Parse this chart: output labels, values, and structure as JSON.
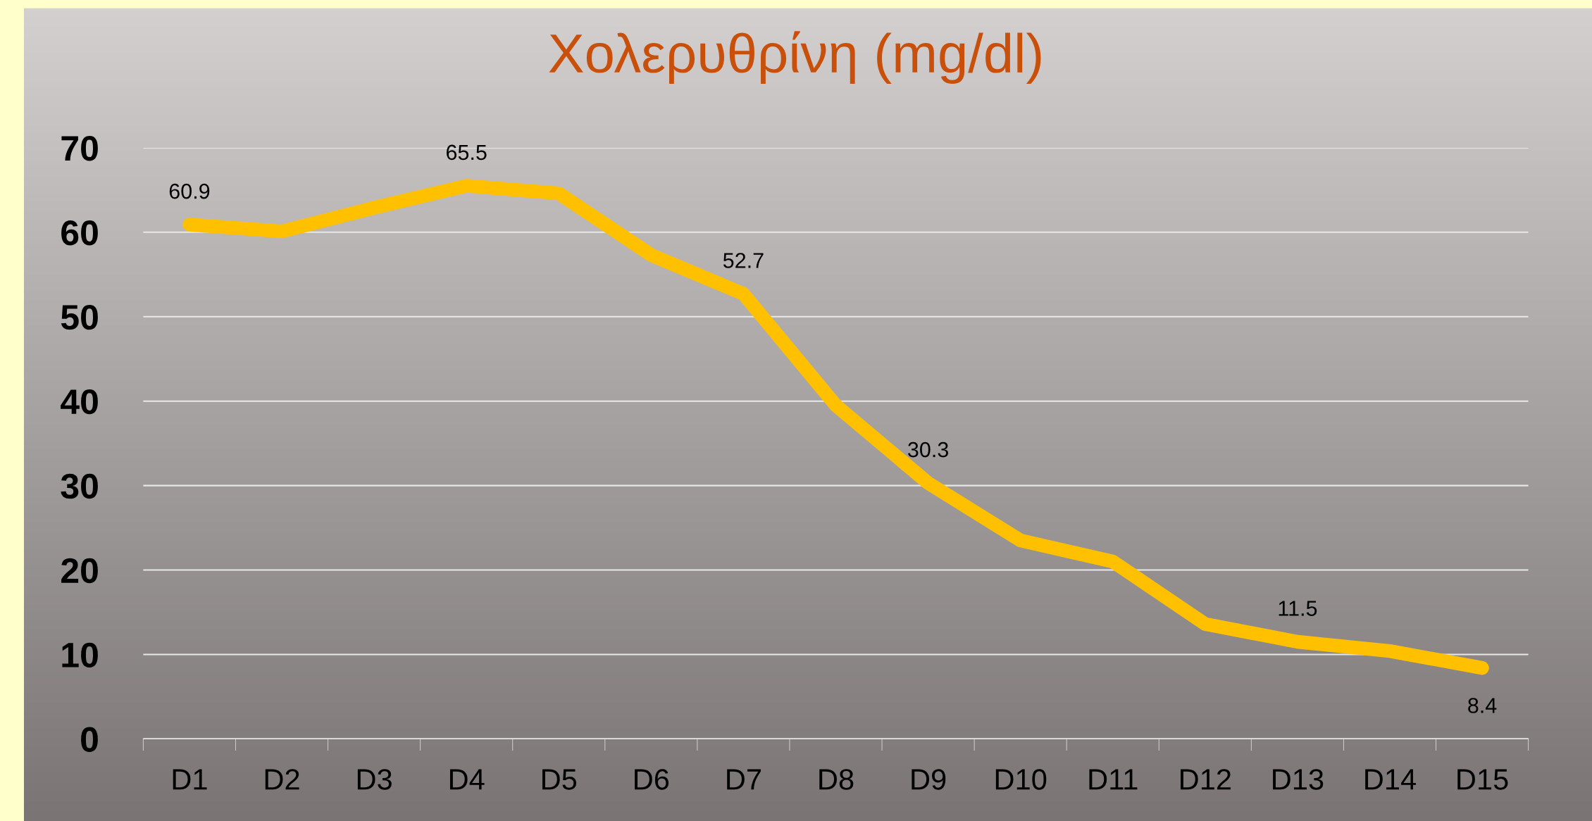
{
  "chart_data": {
    "type": "line",
    "title": "Χολερυθρίνη (mg/dl)",
    "categories": [
      "D1",
      "D2",
      "D3",
      "D4",
      "D5",
      "D6",
      "D7",
      "D8",
      "D9",
      "D10",
      "D11",
      "D12",
      "D13",
      "D14",
      "D15"
    ],
    "series": [
      {
        "color": "#ffc000",
        "values": [
          60.9,
          60.1,
          62.9,
          65.5,
          64.6,
          57.3,
          52.7,
          39.5,
          30.3,
          23.5,
          21.0,
          13.6,
          11.5,
          10.4,
          8.4
        ],
        "value_labels": [
          "60.9",
          null,
          null,
          "65.5",
          null,
          null,
          "52.7",
          null,
          "30.3",
          null,
          null,
          null,
          "11.5",
          null,
          "8.4"
        ]
      }
    ],
    "ylim": [
      0,
      70
    ],
    "yticks": [
      0,
      10,
      20,
      30,
      40,
      50,
      60,
      70
    ],
    "grid": "y",
    "legend": false,
    "line_style": "solid"
  }
}
